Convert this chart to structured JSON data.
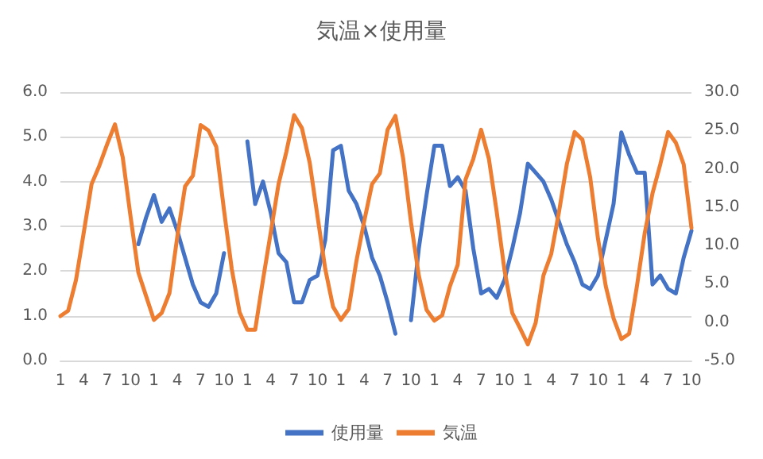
{
  "chart_data": {
    "type": "line",
    "title": "気温×使用量",
    "categories": [
      "1",
      null,
      null,
      "4",
      null,
      null,
      "7",
      null,
      null,
      "10",
      null,
      null,
      "1",
      null,
      null,
      "4",
      null,
      null,
      "7",
      null,
      null,
      "10",
      null,
      null,
      "1",
      null,
      null,
      "4",
      null,
      null,
      "7",
      null,
      null,
      "10",
      null,
      null,
      "1",
      null,
      null,
      "4",
      null,
      null,
      "7",
      null,
      null,
      "10",
      null,
      null,
      "1",
      null,
      null,
      "4",
      null,
      null,
      "7",
      null,
      null,
      "10",
      null,
      null,
      "1",
      null,
      null,
      "4",
      null,
      null,
      "7",
      null,
      null,
      "10",
      null,
      null,
      "1",
      null,
      null,
      "4",
      null,
      null,
      "7",
      null,
      null,
      "10"
    ],
    "series": [
      {
        "name": "使用量",
        "color": "#4472c4",
        "values": [
          null,
          null,
          null,
          null,
          null,
          null,
          null,
          null,
          null,
          null,
          2.6,
          3.2,
          3.7,
          3.1,
          3.4,
          2.9,
          2.3,
          1.7,
          1.3,
          1.2,
          1.5,
          2.4,
          null,
          null,
          4.9,
          3.5,
          4.0,
          3.3,
          2.4,
          2.2,
          1.3,
          1.3,
          1.8,
          1.9,
          2.7,
          4.7,
          4.8,
          3.8,
          3.5,
          3.0,
          2.3,
          1.9,
          1.3,
          0.6,
          null,
          0.9,
          2.5,
          3.7,
          4.8,
          4.8,
          3.9,
          4.1,
          3.8,
          2.5,
          1.5,
          1.6,
          1.4,
          1.8,
          2.5,
          3.3,
          4.4,
          4.2,
          4.0,
          3.6,
          3.1,
          2.6,
          2.2,
          1.7,
          1.6,
          1.9,
          2.7,
          3.5,
          5.1,
          4.6,
          4.2,
          4.2,
          1.7,
          1.9,
          1.6,
          1.5,
          2.3,
          2.9
        ]
      },
      {
        "name": "気温",
        "color": "#ed7d31",
        "axis": "y2",
        "values": [
          0.8,
          1.5,
          5.5,
          11.7,
          18,
          20.4,
          23.2,
          25.8,
          21.5,
          13.8,
          6.5,
          3.4,
          0.3,
          1.2,
          3.8,
          11.1,
          17.7,
          19.1,
          25.7,
          25,
          22.9,
          14.6,
          6.9,
          1.3,
          -1.0,
          -1.0,
          5.5,
          11.7,
          18,
          22.2,
          27,
          25.3,
          20.8,
          13.8,
          6.9,
          2.0,
          0.3,
          1.7,
          8,
          13.2,
          18,
          19.4,
          25.1,
          26.9,
          21.3,
          13,
          6.1,
          1.6,
          0.2,
          0.9,
          4.7,
          7.5,
          18.6,
          21.3,
          25.1,
          21.3,
          14.4,
          6.8,
          1.2,
          -0.8,
          -2.9,
          -0.1,
          6.1,
          8.9,
          14.4,
          20.6,
          24.8,
          23.8,
          18.9,
          10.9,
          4.7,
          0.5,
          -2.2,
          -1.5,
          4.7,
          11.6,
          16.8,
          20.6,
          24.8,
          23.4,
          20.6,
          12.3
        ]
      }
    ],
    "ylim": [
      0,
      6
    ],
    "yticks": [
      {
        "value": 0,
        "label": "0.0"
      },
      {
        "value": 1,
        "label": "1.0"
      },
      {
        "value": 2,
        "label": "2.0"
      },
      {
        "value": 3,
        "label": "3.0"
      },
      {
        "value": 4,
        "label": "4.0"
      },
      {
        "value": 5,
        "label": "5.0"
      },
      {
        "value": 6,
        "label": "6.0"
      }
    ],
    "y2lim": [
      -5,
      30
    ],
    "y2ticks": [
      {
        "value": -5,
        "label": "-5.0"
      },
      {
        "value": 0,
        "label": "0.0"
      },
      {
        "value": 5,
        "label": "5.0"
      },
      {
        "value": 10,
        "label": "10.0"
      },
      {
        "value": 15,
        "label": "15.0"
      },
      {
        "value": 20,
        "label": "20.0"
      },
      {
        "value": 25,
        "label": "25.0"
      },
      {
        "value": 30,
        "label": "30.0"
      }
    ],
    "grid": "y",
    "legend": "bottom",
    "marker": "none",
    "line_style": "solid"
  }
}
